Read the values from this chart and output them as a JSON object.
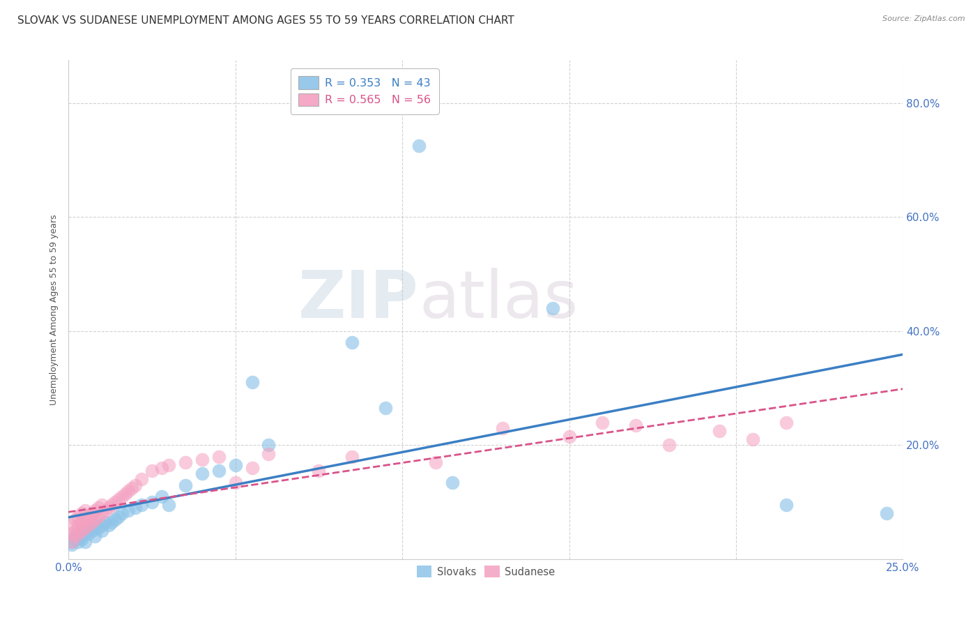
{
  "title": "SLOVAK VS SUDANESE UNEMPLOYMENT AMONG AGES 55 TO 59 YEARS CORRELATION CHART",
  "source": "Source: ZipAtlas.com",
  "ylabel_label": "Unemployment Among Ages 55 to 59 years",
  "ylabel_tick_vals": [
    0.2,
    0.4,
    0.6,
    0.8
  ],
  "xlim": [
    0.0,
    0.25
  ],
  "ylim": [
    0.0,
    0.875
  ],
  "legend_slovak": "R = 0.353   N = 43",
  "legend_sudanese": "R = 0.565   N = 56",
  "legend_label1": "Slovaks",
  "legend_label2": "Sudanese",
  "color_slovak": "#8ec4e8",
  "color_sudanese": "#f4a0c0",
  "color_slovak_line": "#3b7fc4",
  "color_sudanese_line": "#d9538a",
  "watermark_zip": "ZIP",
  "watermark_atlas": "atlas",
  "slovak_x": [
    0.001,
    0.001,
    0.002,
    0.002,
    0.003,
    0.003,
    0.004,
    0.004,
    0.005,
    0.005,
    0.006,
    0.007,
    0.007,
    0.008,
    0.008,
    0.009,
    0.01,
    0.01,
    0.011,
    0.012,
    0.013,
    0.014,
    0.015,
    0.016,
    0.018,
    0.02,
    0.022,
    0.025,
    0.028,
    0.03,
    0.035,
    0.04,
    0.045,
    0.05,
    0.055,
    0.06,
    0.085,
    0.095,
    0.105,
    0.115,
    0.145,
    0.215,
    0.245
  ],
  "slovak_y": [
    0.025,
    0.03,
    0.035,
    0.04,
    0.03,
    0.045,
    0.035,
    0.04,
    0.03,
    0.05,
    0.045,
    0.05,
    0.055,
    0.06,
    0.04,
    0.055,
    0.05,
    0.06,
    0.065,
    0.06,
    0.065,
    0.07,
    0.075,
    0.08,
    0.085,
    0.09,
    0.095,
    0.1,
    0.11,
    0.095,
    0.13,
    0.15,
    0.155,
    0.165,
    0.31,
    0.2,
    0.38,
    0.265,
    0.725,
    0.135,
    0.44,
    0.095,
    0.08
  ],
  "sudanese_x": [
    0.001,
    0.001,
    0.001,
    0.002,
    0.002,
    0.002,
    0.003,
    0.003,
    0.003,
    0.004,
    0.004,
    0.004,
    0.005,
    0.005,
    0.005,
    0.006,
    0.006,
    0.007,
    0.007,
    0.008,
    0.008,
    0.009,
    0.009,
    0.01,
    0.01,
    0.011,
    0.012,
    0.013,
    0.014,
    0.015,
    0.016,
    0.017,
    0.018,
    0.019,
    0.02,
    0.022,
    0.025,
    0.028,
    0.03,
    0.035,
    0.04,
    0.045,
    0.05,
    0.055,
    0.06,
    0.075,
    0.085,
    0.11,
    0.13,
    0.15,
    0.16,
    0.17,
    0.18,
    0.195,
    0.205,
    0.215
  ],
  "sudanese_y": [
    0.03,
    0.045,
    0.06,
    0.04,
    0.05,
    0.07,
    0.045,
    0.06,
    0.075,
    0.05,
    0.065,
    0.08,
    0.055,
    0.07,
    0.085,
    0.06,
    0.075,
    0.065,
    0.08,
    0.07,
    0.085,
    0.075,
    0.09,
    0.08,
    0.095,
    0.085,
    0.09,
    0.095,
    0.1,
    0.105,
    0.11,
    0.115,
    0.12,
    0.125,
    0.13,
    0.14,
    0.155,
    0.16,
    0.165,
    0.17,
    0.175,
    0.18,
    0.135,
    0.16,
    0.185,
    0.155,
    0.18,
    0.17,
    0.23,
    0.215,
    0.24,
    0.235,
    0.2,
    0.225,
    0.21,
    0.24
  ],
  "grid_color": "#cccccc",
  "background_color": "#ffffff",
  "title_fontsize": 11,
  "axis_label_fontsize": 9,
  "source_fontsize": 8
}
